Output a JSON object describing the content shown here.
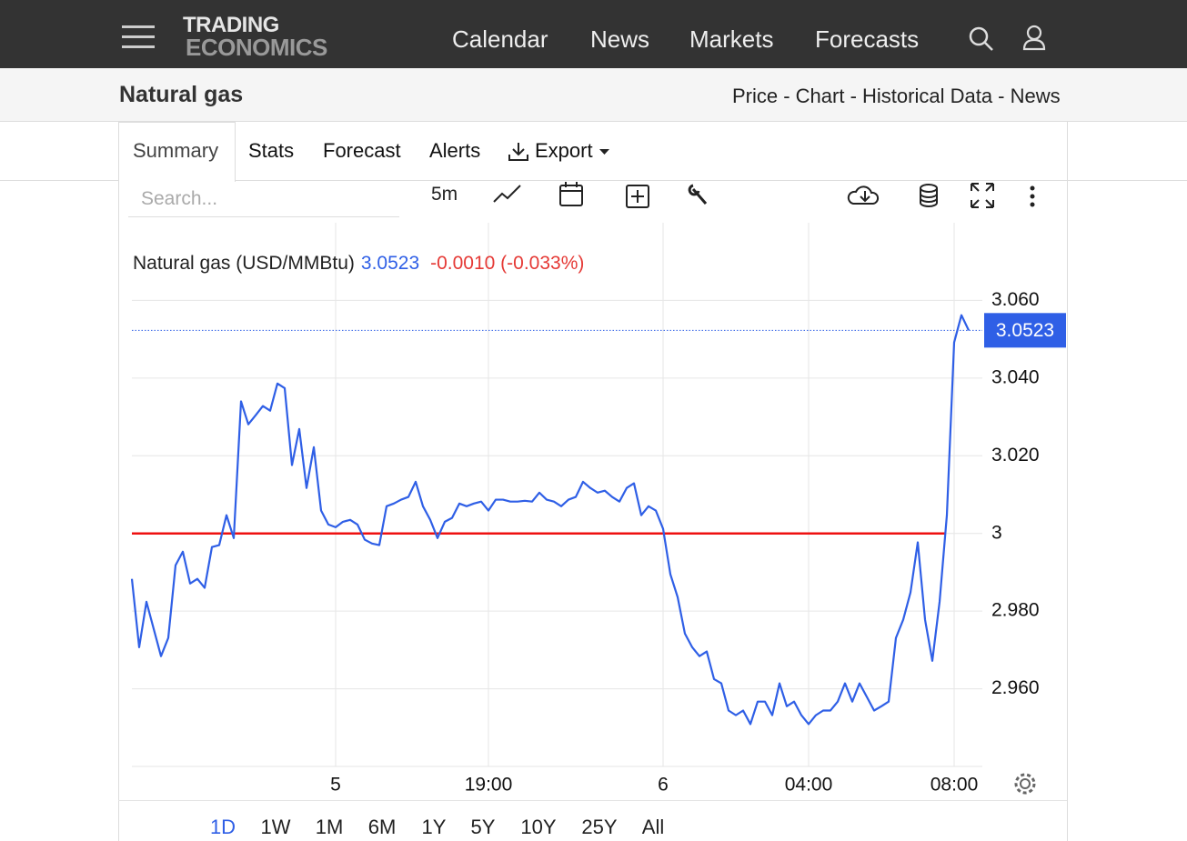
{
  "nav": {
    "logo": [
      "TRADING",
      "ECONOMICS"
    ],
    "items": [
      "Calendar",
      "News",
      "Markets",
      "Forecasts"
    ]
  },
  "header": {
    "title": "Natural gas",
    "links": "Price - Chart - Historical Data - News"
  },
  "tabs": [
    "Summary",
    "Stats",
    "Forecast",
    "Alerts",
    "Export"
  ],
  "toolbar": {
    "search_placeholder": "Search...",
    "interval": "5m"
  },
  "chart_data": {
    "type": "line",
    "title": "Natural gas (USD/MMBtu)",
    "change_label": "-0.0010 (-0.033%)",
    "categories": [
      null,
      null,
      null,
      null,
      null,
      null,
      null,
      null,
      null,
      null,
      null,
      null,
      null,
      null,
      null,
      null,
      null,
      null,
      null,
      null,
      null,
      null,
      null,
      null,
      null,
      null,
      null,
      null,
      "5",
      null,
      null,
      null,
      null,
      null,
      null,
      null,
      null,
      null,
      null,
      null,
      null,
      null,
      null,
      null,
      null,
      null,
      null,
      null,
      null,
      "19:00",
      null,
      null,
      null,
      null,
      null,
      null,
      null,
      null,
      null,
      null,
      null,
      null,
      null,
      null,
      null,
      null,
      null,
      null,
      null,
      null,
      null,
      null,
      null,
      "6",
      null,
      null,
      null,
      null,
      null,
      null,
      null,
      null,
      null,
      null,
      null,
      null,
      null,
      null,
      null,
      null,
      null,
      null,
      null,
      "04:00",
      null,
      null,
      null,
      null,
      null,
      null,
      null,
      null,
      null,
      null,
      null,
      null,
      null,
      null,
      null,
      null,
      null,
      null,
      null,
      "08:00",
      null,
      null
    ],
    "series": [
      {
        "name": "Natural gas (USD/MMBtu)",
        "color": "#2f5fe6",
        "values": [
          2.9883,
          2.9707,
          2.9824,
          2.9754,
          2.9684,
          2.9731,
          2.9918,
          2.9953,
          2.9871,
          2.9883,
          2.986,
          2.9965,
          2.997,
          3.0047,
          2.9988,
          3.034,
          3.0281,
          3.0304,
          3.0328,
          3.0316,
          3.0386,
          3.0374,
          3.0176,
          3.0269,
          3.0117,
          3.0222,
          3.0059,
          3.0023,
          3.0016,
          3.003,
          3.0035,
          3.0023,
          2.9984,
          2.9974,
          2.997,
          3.007,
          3.0077,
          3.0087,
          3.0094,
          3.0133,
          3.007,
          3.0035,
          2.9988,
          3.003,
          3.004,
          3.0077,
          3.007,
          3.0077,
          3.0082,
          3.0059,
          3.0087,
          3.0087,
          3.0082,
          3.0082,
          3.0084,
          3.0082,
          3.0105,
          3.0087,
          3.0082,
          3.007,
          3.0087,
          3.0094,
          3.0133,
          3.0117,
          3.0105,
          3.011,
          3.0094,
          3.0082,
          3.0117,
          3.0129,
          3.0047,
          3.007,
          3.0059,
          3.0012,
          2.9895,
          2.9836,
          2.9742,
          2.9707,
          2.9684,
          2.9696,
          2.9625,
          2.9614,
          2.9544,
          2.9532,
          2.9544,
          2.9509,
          2.9567,
          2.9567,
          2.9532,
          2.9614,
          2.9555,
          2.9567,
          2.9532,
          2.9509,
          2.9532,
          2.9544,
          2.9544,
          2.9567,
          2.9614,
          2.9567,
          2.9614,
          2.9579,
          2.9544,
          2.9555,
          2.9567,
          2.9731,
          2.9778,
          2.9848,
          2.9977,
          2.9778,
          2.9672,
          2.9824,
          3.0047,
          3.0492,
          3.0562,
          3.0523
        ]
      }
    ],
    "change_color": "#e53935",
    "reference_line": {
      "value": 3,
      "color": "#ee1111"
    },
    "ylim": [
      2.94,
      3.08
    ],
    "yticks": [
      {
        "value": 2.96,
        "label": "2.960"
      },
      {
        "value": 2.98,
        "label": "2.980"
      },
      3,
      {
        "value": 3.02,
        "label": "3.020"
      },
      {
        "value": 3.04,
        "label": "3.040"
      },
      {
        "value": 3.06,
        "label": "3.060"
      }
    ],
    "grid": true,
    "ranges": [
      "1D",
      "1W",
      "1M",
      "6M",
      "1Y",
      "5Y",
      "10Y",
      "25Y",
      "All"
    ],
    "active_range": 0
  }
}
